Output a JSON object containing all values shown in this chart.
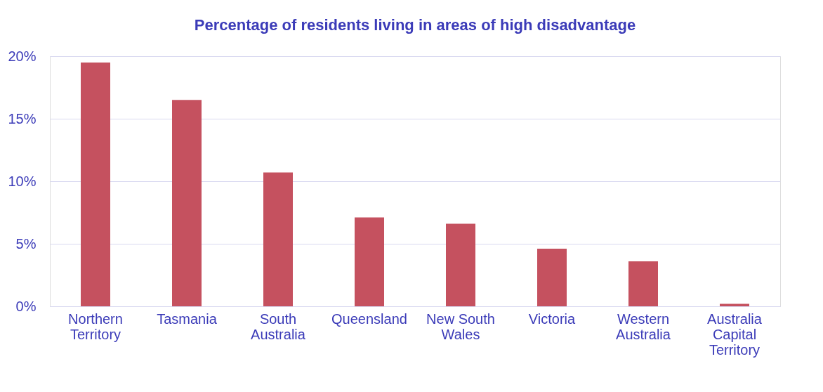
{
  "chart_data": {
    "type": "bar",
    "title": "Percentage of residents living in areas of high disadvantage",
    "categories": [
      "Northern Territory",
      "Tasmania",
      "South Australia",
      "Queensland",
      "New South Wales",
      "Victoria",
      "Western Australia",
      "Australia Capital Territory"
    ],
    "values": [
      19.5,
      16.5,
      10.7,
      7.1,
      6.6,
      4.6,
      3.6,
      0.2
    ],
    "color": "#c5515f",
    "ylim": [
      0,
      20
    ],
    "yticks": [
      {
        "value": 0,
        "label": "0%"
      },
      {
        "value": 5,
        "label": "5%"
      },
      {
        "value": 10,
        "label": "10%"
      },
      {
        "value": 15,
        "label": "15%"
      },
      {
        "value": 20,
        "label": "20%"
      }
    ],
    "grid": "y"
  }
}
